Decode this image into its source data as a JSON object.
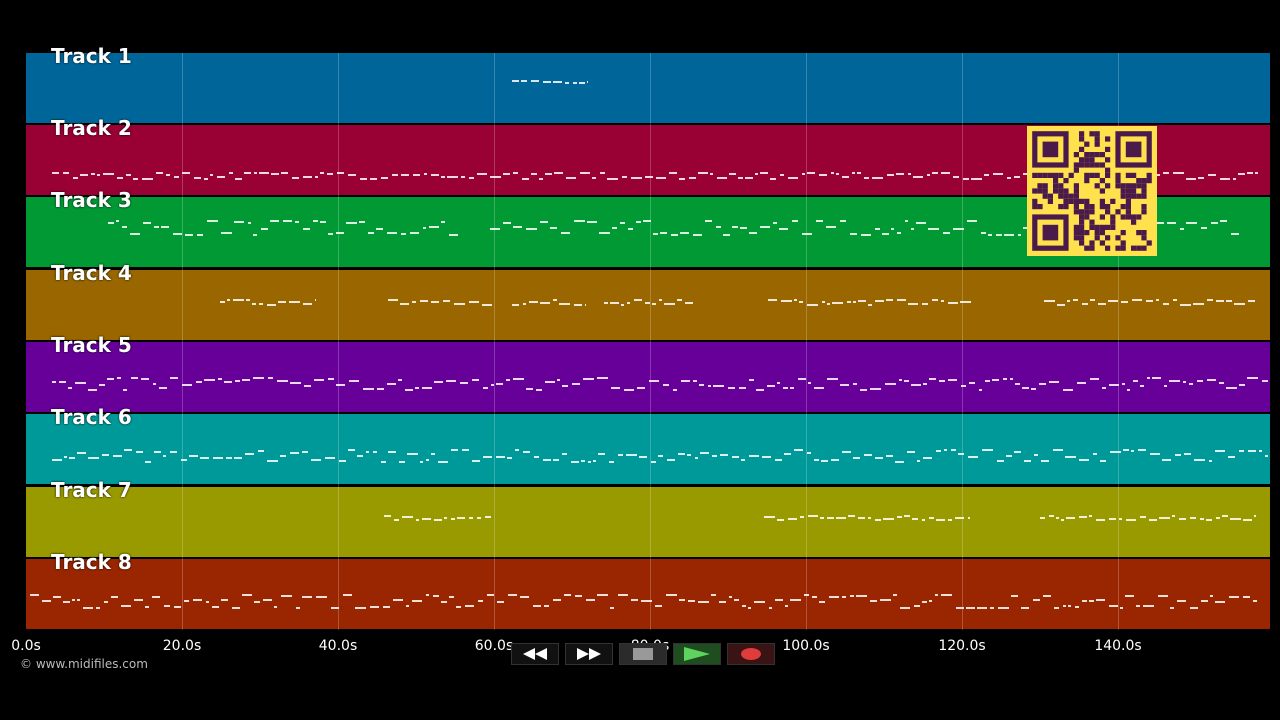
{
  "tracks": [
    {
      "label": "Track 1",
      "color": "#00669a"
    },
    {
      "label": "Track 2",
      "color": "#990033"
    },
    {
      "label": "Track 3",
      "color": "#009933"
    },
    {
      "label": "Track 4",
      "color": "#996600"
    },
    {
      "label": "Track 5",
      "color": "#660099"
    },
    {
      "label": "Track 6",
      "color": "#009999"
    },
    {
      "label": "Track 7",
      "color": "#999900"
    },
    {
      "label": "Track 8",
      "color": "#992600"
    }
  ],
  "timeline": {
    "ticks": [
      "0.0s",
      "20.0s",
      "40.0s",
      "60.0s",
      "80.0s",
      "100.0s",
      "120.0s",
      "140.0s"
    ]
  },
  "footer": {
    "copyright": "© www.midifiles.com"
  },
  "controls": {
    "rewind_icon": "rewind-icon",
    "forward_icon": "fast-forward-icon",
    "stop_icon": "stop-icon",
    "play_icon": "play-icon",
    "record_icon": "record-icon"
  },
  "qr": {
    "color": "#ffe14d",
    "dot": "#4a1b4a"
  }
}
